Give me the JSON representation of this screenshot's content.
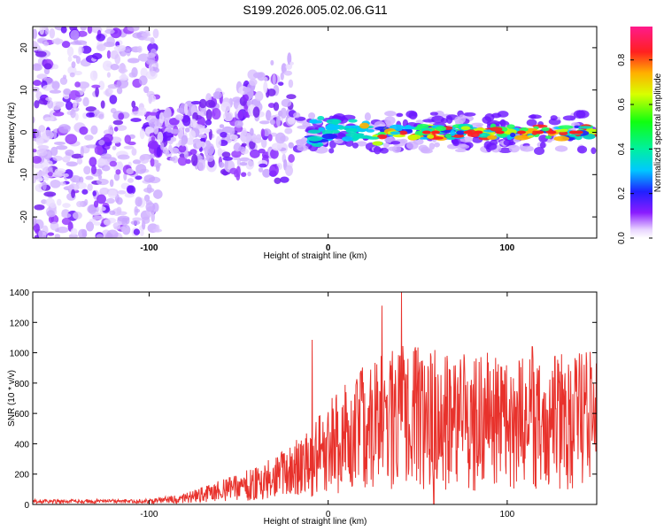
{
  "title": "S199.2026.005.02.06.G11",
  "chart_data": [
    {
      "type": "heatmap",
      "xlabel": "Height of straight line (km)",
      "ylabel": "Frequency (Hz)",
      "xlim": [
        -165,
        150
      ],
      "ylim": [
        -25,
        25
      ],
      "xticks": [
        -100,
        0,
        100
      ],
      "yticks": [
        -20,
        -10,
        0,
        10,
        20
      ],
      "colorbar": {
        "label": "Normalized spectral amplitude",
        "range": [
          0,
          0.95
        ],
        "ticks": [
          "0.0",
          "0.2",
          "0.4",
          "0.6",
          "0.8"
        ]
      },
      "description_values": {
        "noise_region_km": [
          -165,
          -100
        ],
        "transition_region_km": [
          -100,
          -20
        ],
        "tone_region_km": [
          -20,
          150
        ],
        "tone_frequency_hz": 0
      }
    },
    {
      "type": "line",
      "xlabel": "Height of straight line (km)",
      "ylabel": "SNR (10 * v/v)",
      "xlim": [
        -165,
        150
      ],
      "ylim": [
        0,
        1400
      ],
      "xticks": [
        -100,
        0,
        100
      ],
      "yticks": [
        0,
        200,
        400,
        600,
        800,
        1000,
        1200,
        1400
      ],
      "series": [
        {
          "name": "SNR",
          "color": "#e8322c",
          "envelope_x": [
            -165,
            -100,
            -80,
            -60,
            -40,
            -20,
            -10,
            0,
            20,
            40,
            60,
            80,
            100,
            120,
            150
          ],
          "envelope_mean": [
            18,
            20,
            40,
            90,
            140,
            220,
            330,
            420,
            560,
            640,
            620,
            600,
            580,
            590,
            620
          ],
          "peaks": [
            {
              "x": -9,
              "y": 1085
            },
            {
              "x": 30,
              "y": 1310
            },
            {
              "x": 41,
              "y": 1400
            },
            {
              "x": 89,
              "y": 1000
            },
            {
              "x": 114,
              "y": 1040
            },
            {
              "x": 147,
              "y": 900
            }
          ]
        }
      ]
    }
  ]
}
